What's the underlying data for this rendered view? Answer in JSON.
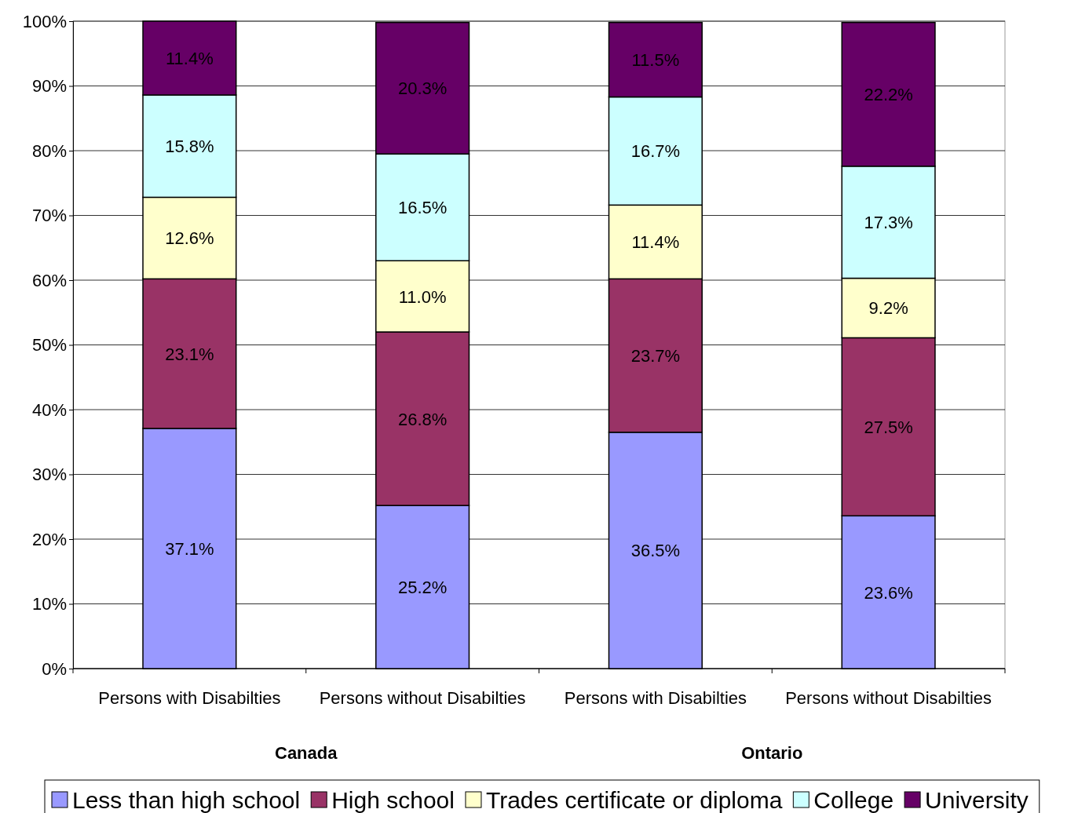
{
  "chart_data": {
    "type": "bar",
    "stacked": true,
    "categories": [
      "Persons with Disabilties",
      "Persons without Disabilties",
      "Persons with Disabilties",
      "Persons without Disabilties"
    ],
    "series": [
      {
        "name": "Less than high school",
        "color": "#9999ff",
        "values": [
          37.1,
          25.2,
          36.5,
          23.6
        ]
      },
      {
        "name": "High school",
        "color": "#993366",
        "values": [
          23.1,
          26.8,
          23.7,
          27.5
        ]
      },
      {
        "name": "Trades certificate or diploma",
        "color": "#ffffcc",
        "values": [
          12.6,
          11.0,
          11.4,
          9.2
        ]
      },
      {
        "name": "College",
        "color": "#ccffff",
        "values": [
          15.8,
          16.5,
          16.7,
          17.3
        ]
      },
      {
        "name": "University",
        "color": "#660066",
        "values": [
          11.4,
          20.3,
          11.5,
          22.2
        ]
      }
    ],
    "value_labels": [
      [
        "37.1%",
        "25.2%",
        "36.5%",
        "23.6%"
      ],
      [
        "23.1%",
        "26.8%",
        "23.7%",
        "27.5%"
      ],
      [
        "12.6%",
        "11.0%",
        "11.4%",
        "9.2%"
      ],
      [
        "15.8%",
        "16.5%",
        "16.7%",
        "17.3%"
      ],
      [
        "11.4%",
        "20.3%",
        "11.5%",
        "22.2%"
      ]
    ],
    "annotations": [
      "Canada",
      "Ontario"
    ],
    "ylim": [
      0,
      100
    ],
    "yticks": [
      {
        "value": 0,
        "label": "0%"
      },
      {
        "value": 10,
        "label": "10%"
      },
      {
        "value": 20,
        "label": "20%"
      },
      {
        "value": 30,
        "label": "30%"
      },
      {
        "value": 40,
        "label": "40%"
      },
      {
        "value": 50,
        "label": "50%"
      },
      {
        "value": 60,
        "label": "60%"
      },
      {
        "value": 70,
        "label": "70%"
      },
      {
        "value": 80,
        "label": "80%"
      },
      {
        "value": 90,
        "label": "90%"
      },
      {
        "value": 100,
        "label": "100%"
      }
    ],
    "grid": "y",
    "legend": "bottom"
  }
}
